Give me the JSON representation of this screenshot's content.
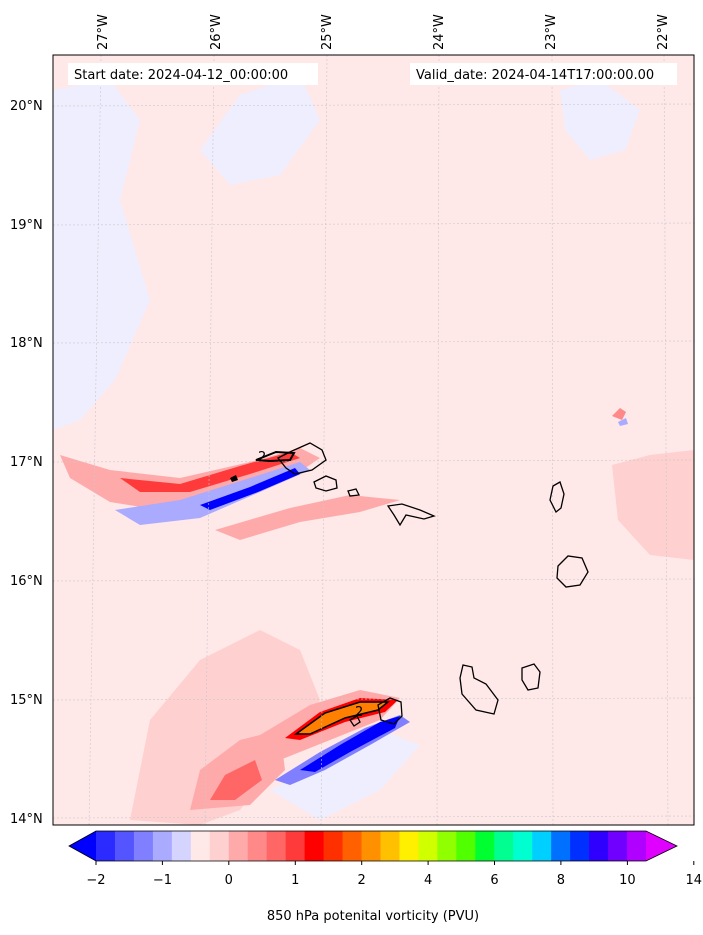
{
  "header": {
    "start_label": "Start date: 2024-04-12_00:00:00",
    "valid_label": "Valid_date: 2024-04-14T17:00:00.00"
  },
  "map": {
    "lon_labels": [
      "27°W",
      "26°W",
      "25°W",
      "24°W",
      "23°W",
      "22°W"
    ],
    "lat_labels": [
      "20°N",
      "19°N",
      "18°N",
      "17°N",
      "16°N",
      "15°N",
      "14°N"
    ],
    "contour_labels": [
      "2",
      "2"
    ]
  },
  "colorbar": {
    "title": "850 hPa potenital vorticity (PVU)",
    "tick_labels": [
      "−2",
      "−1",
      "0",
      "1",
      "2",
      "4",
      "6",
      "8",
      "10",
      "14"
    ],
    "colors": [
      "#0000ff",
      "#2b2bff",
      "#5555ff",
      "#7f7fff",
      "#aaaaff",
      "#d4d4ff",
      "#ffe8e8",
      "#ffd0d0",
      "#ffaaaa",
      "#ff8888",
      "#ff6666",
      "#ff3a3a",
      "#ff0000",
      "#ff3000",
      "#ff6000",
      "#ff9000",
      "#ffc000",
      "#fff000",
      "#d0ff00",
      "#90ff00",
      "#50ff00",
      "#00ff30",
      "#00ff90",
      "#00ffd0",
      "#00d0ff",
      "#0070ff",
      "#0030ff",
      "#3000ff",
      "#7000ff",
      "#b000ff",
      "#e000ff"
    ]
  },
  "colors": {
    "background_field": "#ffe8e8",
    "weak_negative": "#eeeeff",
    "positive_mid": "#ffaaaa",
    "positive_strong": "#ff0000",
    "negative_strong": "#0000ff",
    "pv_high": "#ff8000"
  }
}
